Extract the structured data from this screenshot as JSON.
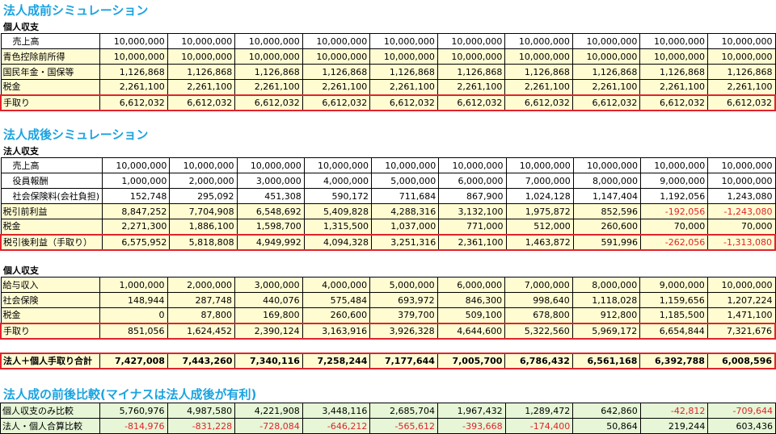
{
  "sec1": {
    "title": "法人成前シミュレーション",
    "sub": "個人収支",
    "rows": [
      {
        "label": "売上高",
        "vals": [
          "10,000,000",
          "10,000,000",
          "10,000,000",
          "10,000,000",
          "10,000,000",
          "10,000,000",
          "10,000,000",
          "10,000,000",
          "10,000,000",
          "10,000,000"
        ]
      },
      {
        "label": "青色控除前所得",
        "vals": [
          "10,000,000",
          "10,000,000",
          "10,000,000",
          "10,000,000",
          "10,000,000",
          "10,000,000",
          "10,000,000",
          "10,000,000",
          "10,000,000",
          "10,000,000"
        ]
      },
      {
        "label": "国民年金・国保等",
        "vals": [
          "1,126,868",
          "1,126,868",
          "1,126,868",
          "1,126,868",
          "1,126,868",
          "1,126,868",
          "1,126,868",
          "1,126,868",
          "1,126,868",
          "1,126,868"
        ]
      },
      {
        "label": "税金",
        "vals": [
          "2,261,100",
          "2,261,100",
          "2,261,100",
          "2,261,100",
          "2,261,100",
          "2,261,100",
          "2,261,100",
          "2,261,100",
          "2,261,100",
          "2,261,100"
        ]
      },
      {
        "label": "手取り",
        "vals": [
          "6,612,032",
          "6,612,032",
          "6,612,032",
          "6,612,032",
          "6,612,032",
          "6,612,032",
          "6,612,032",
          "6,612,032",
          "6,612,032",
          "6,612,032"
        ]
      }
    ]
  },
  "sec2": {
    "title": "法人成後シミュレーション",
    "sub": "法人収支",
    "rows": [
      {
        "label": "売上高",
        "vals": [
          "10,000,000",
          "10,000,000",
          "10,000,000",
          "10,000,000",
          "10,000,000",
          "10,000,000",
          "10,000,000",
          "10,000,000",
          "10,000,000",
          "10,000,000"
        ]
      },
      {
        "label": "役員報酬",
        "vals": [
          "1,000,000",
          "2,000,000",
          "3,000,000",
          "4,000,000",
          "5,000,000",
          "6,000,000",
          "7,000,000",
          "8,000,000",
          "9,000,000",
          "10,000,000"
        ]
      },
      {
        "label": "社会保険料(会社負担)",
        "vals": [
          "152,748",
          "295,092",
          "451,308",
          "590,172",
          "711,684",
          "867,900",
          "1,024,128",
          "1,147,404",
          "1,192,056",
          "1,243,080"
        ]
      },
      {
        "label": "税引前利益",
        "vals": [
          "8,847,252",
          "7,704,908",
          "6,548,692",
          "5,409,828",
          "4,288,316",
          "3,132,100",
          "1,975,872",
          "852,596",
          "-192,056",
          "-1,243,080"
        ]
      },
      {
        "label": "税金",
        "vals": [
          "2,271,300",
          "1,886,100",
          "1,598,700",
          "1,315,500",
          "1,037,000",
          "771,000",
          "512,000",
          "260,600",
          "70,000",
          "70,000"
        ]
      },
      {
        "label": "税引後利益（手取り）",
        "vals": [
          "6,575,952",
          "5,818,808",
          "4,949,992",
          "4,094,328",
          "3,251,316",
          "2,361,100",
          "1,463,872",
          "591,996",
          "-262,056",
          "-1,313,080"
        ]
      }
    ]
  },
  "sec3": {
    "sub": "個人収支",
    "rows": [
      {
        "label": "給与収入",
        "vals": [
          "1,000,000",
          "2,000,000",
          "3,000,000",
          "4,000,000",
          "5,000,000",
          "6,000,000",
          "7,000,000",
          "8,000,000",
          "9,000,000",
          "10,000,000"
        ]
      },
      {
        "label": "社会保険",
        "vals": [
          "148,944",
          "287,748",
          "440,076",
          "575,484",
          "693,972",
          "846,300",
          "998,640",
          "1,118,028",
          "1,159,656",
          "1,207,224"
        ]
      },
      {
        "label": "税金",
        "vals": [
          "0",
          "87,800",
          "169,800",
          "260,600",
          "379,700",
          "509,100",
          "678,800",
          "912,800",
          "1,185,500",
          "1,471,100"
        ]
      },
      {
        "label": "手取り",
        "vals": [
          "851,056",
          "1,624,452",
          "2,390,124",
          "3,163,916",
          "3,926,328",
          "4,644,600",
          "5,322,560",
          "5,969,172",
          "6,654,844",
          "7,321,676"
        ]
      }
    ]
  },
  "total": {
    "label": "法人＋個人手取り合計",
    "vals": [
      "7,427,008",
      "7,443,260",
      "7,340,116",
      "7,258,244",
      "7,177,644",
      "7,005,700",
      "6,786,432",
      "6,561,168",
      "6,392,788",
      "6,008,596"
    ]
  },
  "sec4": {
    "title": "法人成の前後比較(マイナスは法人成後が有利)",
    "rows": [
      {
        "label": "個人収支のみ比較",
        "vals": [
          "5,760,976",
          "4,987,580",
          "4,221,908",
          "3,448,116",
          "2,685,704",
          "1,967,432",
          "1,289,472",
          "642,860",
          "-42,812",
          "-709,644"
        ]
      },
      {
        "label": "法人・個人合算比較",
        "vals": [
          "-814,976",
          "-831,228",
          "-728,084",
          "-646,212",
          "-565,612",
          "-393,668",
          "-174,400",
          "50,864",
          "219,244",
          "603,436"
        ]
      }
    ]
  },
  "colors": {
    "title": "#1aa3e0",
    "red": "#e0232c",
    "yellow": "#fffcd2",
    "green": "#e6f6d6"
  }
}
